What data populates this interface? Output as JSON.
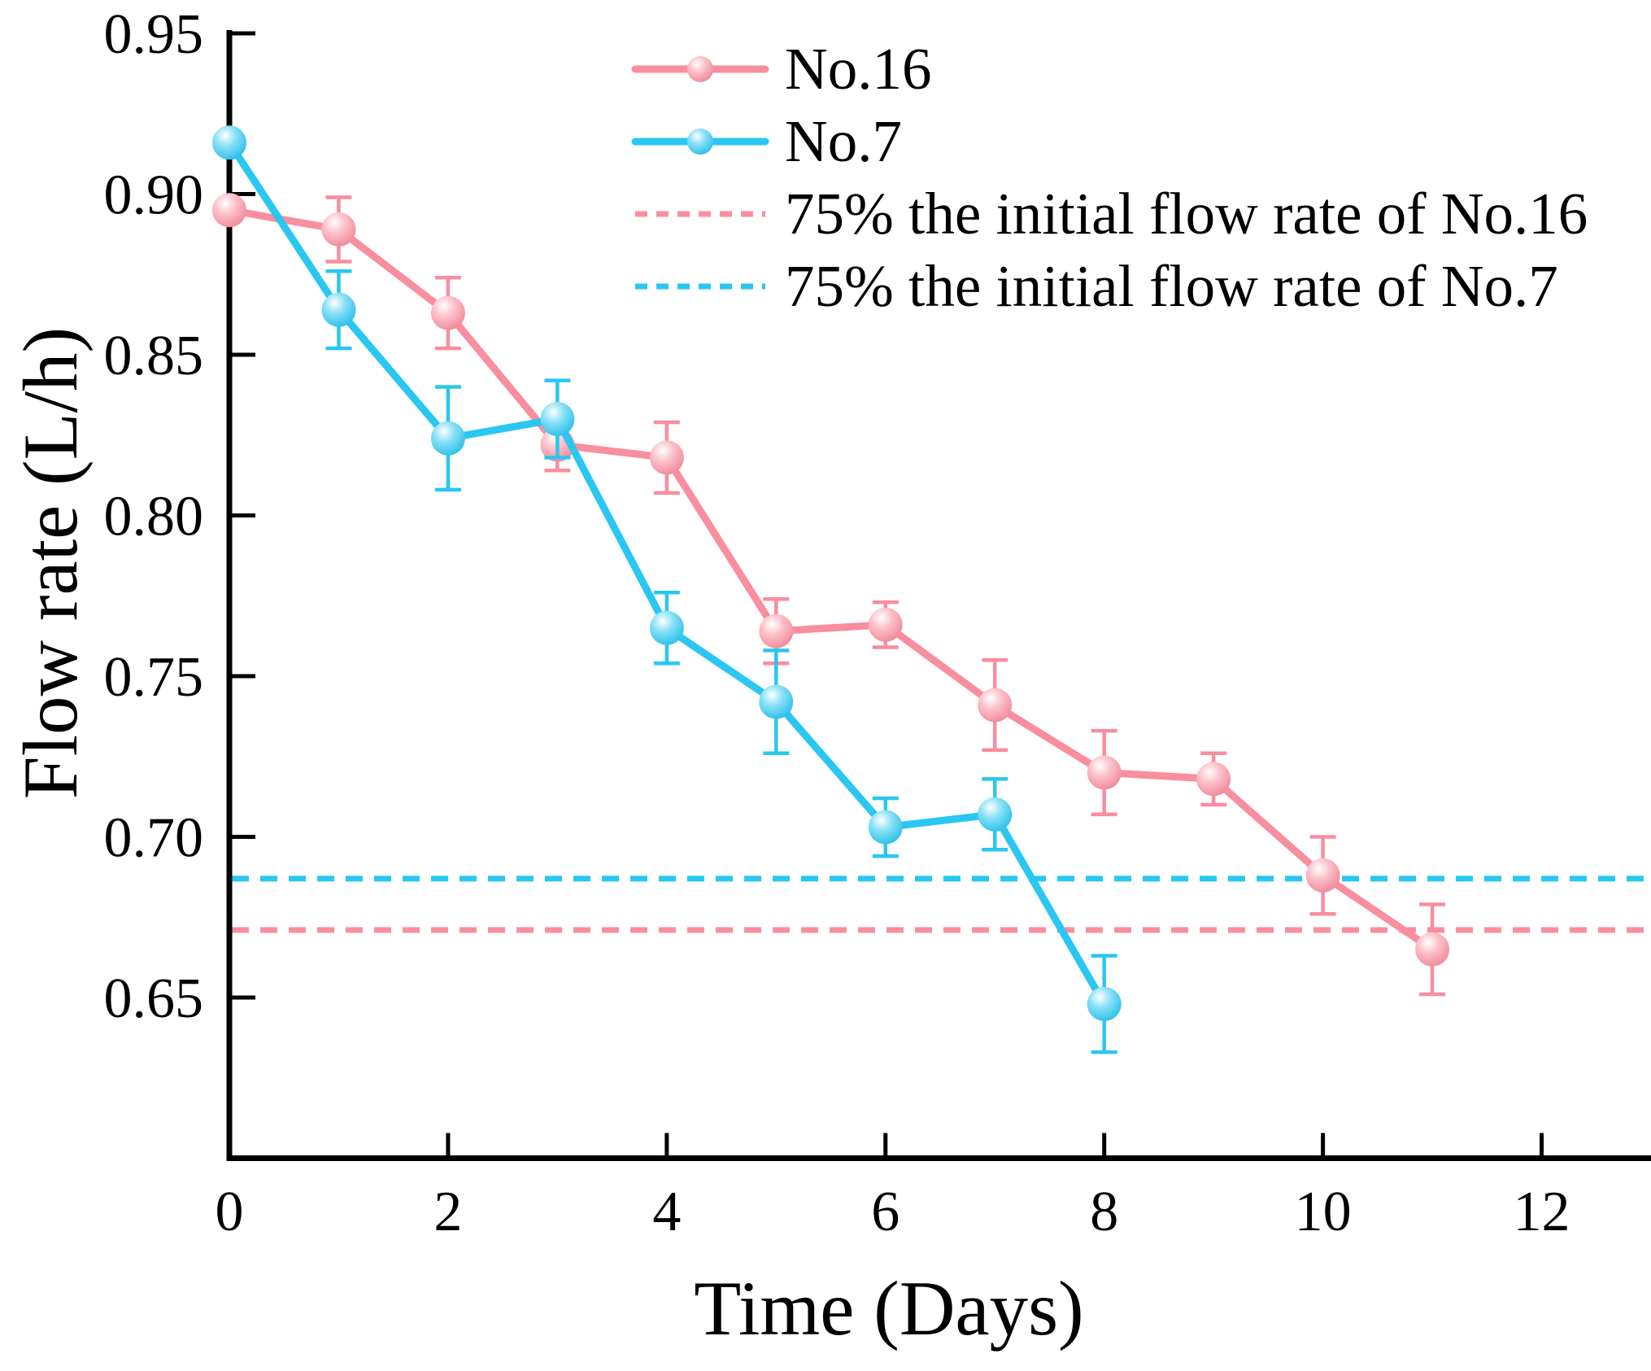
{
  "figure": {
    "background": "#FFFFFF"
  },
  "chart_data": {
    "type": "line",
    "title": "",
    "xlabel": "Time (Days)",
    "ylabel": "Flow rate (L/h)",
    "xlim": [
      0,
      13
    ],
    "ylim": [
      0.6,
      0.95
    ],
    "grid": false,
    "legend_position": "upper center inside plot",
    "xticks": {
      "values": [
        0,
        2,
        4,
        6,
        8,
        10,
        12
      ],
      "labels": [
        "0",
        "2",
        "4",
        "6",
        "8",
        "10",
        "12"
      ]
    },
    "yticks": {
      "values": [
        0.65,
        0.7,
        0.75,
        0.8,
        0.85,
        0.9,
        0.95
      ],
      "labels": [
        "0.65",
        "0.70",
        "0.75",
        "0.80",
        "0.85",
        "0.90",
        "0.95"
      ]
    },
    "series": [
      {
        "name": "No.16",
        "color": "#F98E9E",
        "marker": "sphere",
        "x": [
          0,
          1,
          2,
          3,
          4,
          5,
          6,
          7,
          8,
          9,
          10,
          11
        ],
        "values": [
          0.895,
          0.889,
          0.863,
          0.822,
          0.818,
          0.764,
          0.766,
          0.741,
          0.72,
          0.718,
          0.688,
          0.665
        ],
        "errors": [
          0,
          0.01,
          0.011,
          0.008,
          0.011,
          0.01,
          0.007,
          0.014,
          0.013,
          0.008,
          0.012,
          0.014
        ]
      },
      {
        "name": "No.7",
        "color": "#29C7F1",
        "marker": "sphere",
        "x": [
          0,
          1,
          2,
          3,
          4,
          5,
          6,
          7,
          8
        ],
        "values": [
          0.916,
          0.864,
          0.824,
          0.83,
          0.765,
          0.742,
          0.703,
          0.707,
          0.648
        ],
        "errors": [
          0,
          0.012,
          0.016,
          0.012,
          0.011,
          0.016,
          0.009,
          0.011,
          0.015
        ]
      }
    ],
    "reference_lines": [
      {
        "label": "75% the initial flow rate of No.16",
        "value": 0.671,
        "color": "#F98E9E",
        "style": "dashed"
      },
      {
        "label": "75% the initial flow rate of No.7",
        "value": 0.687,
        "color": "#29C7F1",
        "style": "dashed"
      }
    ]
  }
}
